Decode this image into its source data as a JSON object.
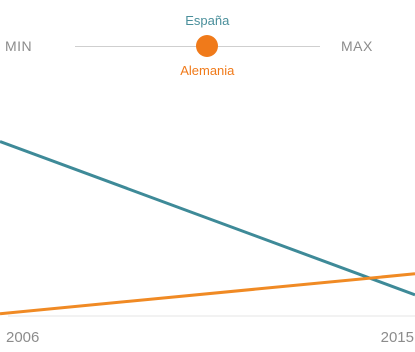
{
  "scale": {
    "min_label": "MIN",
    "max_label": "MAX",
    "top_label": "España",
    "bottom_label": "Alemania",
    "indicator_position": 0.54,
    "top_label_color": "#4a8f9b",
    "bottom_label_color": "#f07a1a",
    "indicator_color": "#f07a1a"
  },
  "chart_data": {
    "type": "line",
    "x": [
      "2006",
      "2015"
    ],
    "ylim": [
      0,
      100
    ],
    "series": [
      {
        "name": "España",
        "color": "#3e8a98",
        "values": [
          85,
          12
        ]
      },
      {
        "name": "Alemania",
        "color": "#f08a24",
        "values": [
          3,
          22
        ]
      }
    ],
    "grid": false
  }
}
